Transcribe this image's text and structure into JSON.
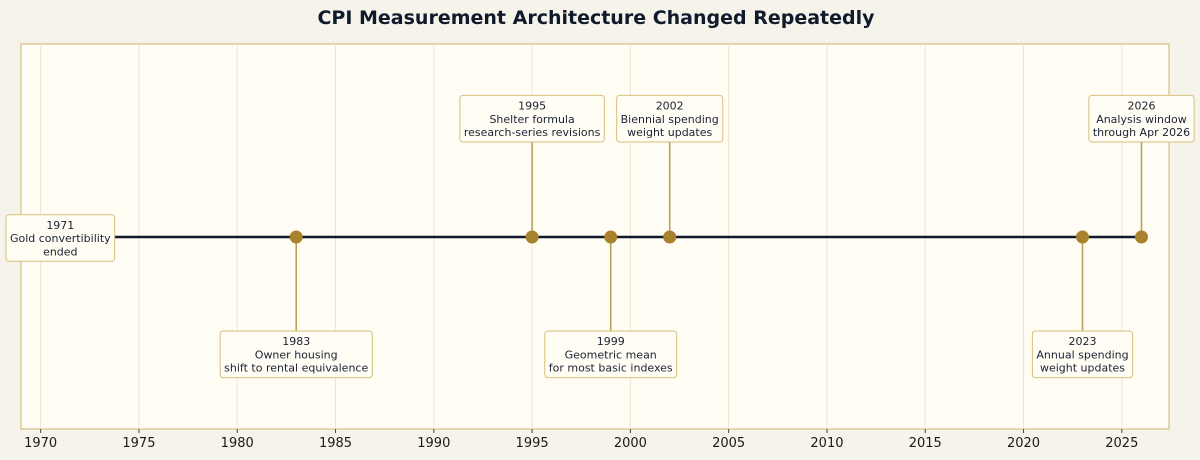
{
  "chart_data": {
    "type": "timeline",
    "title": "CPI Measurement Architecture Changed Repeatedly",
    "xlim": [
      1969,
      2027.4
    ],
    "x_ticks": [
      1970,
      1975,
      1980,
      1985,
      1990,
      1995,
      2000,
      2005,
      2010,
      2015,
      2020,
      2025
    ],
    "grid": true,
    "events": [
      {
        "year": 1971,
        "placement": "center",
        "lines": [
          "1971",
          "Gold convertibility",
          "ended"
        ]
      },
      {
        "year": 1983,
        "placement": "below",
        "lines": [
          "1983",
          "Owner housing",
          "shift to rental equivalence"
        ]
      },
      {
        "year": 1995,
        "placement": "above",
        "lines": [
          "1995",
          "Shelter formula",
          "research-series revisions"
        ]
      },
      {
        "year": 1999,
        "placement": "below",
        "lines": [
          "1999",
          "Geometric mean",
          "for most basic indexes"
        ]
      },
      {
        "year": 2002,
        "placement": "above",
        "lines": [
          "2002",
          "Biennial spending",
          "weight updates"
        ]
      },
      {
        "year": 2023,
        "placement": "below",
        "lines": [
          "2023",
          "Annual spending",
          "weight updates"
        ]
      },
      {
        "year": 2026,
        "placement": "above",
        "lines": [
          "2026",
          "Analysis window",
          "through Apr 2026"
        ]
      }
    ],
    "colors": {
      "background": "#f6f3ea",
      "plot_background": "#fffdf4",
      "frame": "#cdb56a",
      "timeline": "#0f1a2b",
      "marker": "#a8822c",
      "stem": "#b9a25a",
      "box_border": "#d6c07e",
      "grid": "#ece6d2",
      "title": "#0f1a2b"
    }
  }
}
